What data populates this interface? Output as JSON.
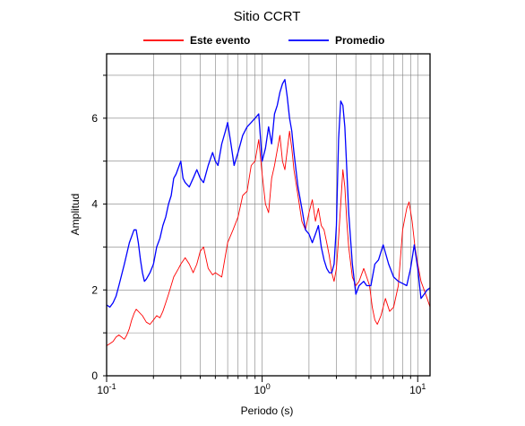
{
  "chart_data": {
    "type": "line",
    "title": "Sitio CCRT",
    "xlabel": "Periodo (s)",
    "ylabel": "Amplitud",
    "x_scale": "log",
    "xlim": [
      0.1,
      12
    ],
    "ylim": [
      0,
      7.5
    ],
    "x_ticks": [
      {
        "value": 0.1,
        "base": "10",
        "exp": "-1"
      },
      {
        "value": 1,
        "base": "10",
        "exp": "0"
      },
      {
        "value": 10,
        "base": "10",
        "exp": "1"
      }
    ],
    "y_ticks": [
      0,
      2,
      4,
      6
    ],
    "grid": true,
    "legend_position": "top-center",
    "series": [
      {
        "name": "Este evento",
        "color": "#ff0000",
        "points": [
          [
            0.1,
            0.7
          ],
          [
            0.105,
            0.75
          ],
          [
            0.11,
            0.8
          ],
          [
            0.115,
            0.9
          ],
          [
            0.12,
            0.95
          ],
          [
            0.125,
            0.9
          ],
          [
            0.13,
            0.85
          ],
          [
            0.135,
            0.95
          ],
          [
            0.14,
            1.1
          ],
          [
            0.145,
            1.3
          ],
          [
            0.15,
            1.45
          ],
          [
            0.155,
            1.55
          ],
          [
            0.16,
            1.5
          ],
          [
            0.17,
            1.4
          ],
          [
            0.18,
            1.25
          ],
          [
            0.19,
            1.2
          ],
          [
            0.2,
            1.3
          ],
          [
            0.21,
            1.4
          ],
          [
            0.22,
            1.35
          ],
          [
            0.23,
            1.5
          ],
          [
            0.24,
            1.7
          ],
          [
            0.25,
            1.9
          ],
          [
            0.27,
            2.3
          ],
          [
            0.29,
            2.5
          ],
          [
            0.3,
            2.6
          ],
          [
            0.32,
            2.75
          ],
          [
            0.34,
            2.6
          ],
          [
            0.36,
            2.4
          ],
          [
            0.38,
            2.6
          ],
          [
            0.4,
            2.9
          ],
          [
            0.42,
            3.0
          ],
          [
            0.45,
            2.5
          ],
          [
            0.48,
            2.35
          ],
          [
            0.5,
            2.4
          ],
          [
            0.55,
            2.3
          ],
          [
            0.58,
            2.8
          ],
          [
            0.6,
            3.1
          ],
          [
            0.65,
            3.4
          ],
          [
            0.7,
            3.7
          ],
          [
            0.75,
            4.2
          ],
          [
            0.8,
            4.3
          ],
          [
            0.85,
            4.9
          ],
          [
            0.9,
            5.0
          ],
          [
            0.95,
            5.5
          ],
          [
            1.0,
            4.7
          ],
          [
            1.05,
            4.0
          ],
          [
            1.1,
            3.8
          ],
          [
            1.15,
            4.6
          ],
          [
            1.2,
            4.9
          ],
          [
            1.3,
            5.6
          ],
          [
            1.35,
            5.0
          ],
          [
            1.4,
            4.8
          ],
          [
            1.5,
            5.7
          ],
          [
            1.55,
            5.3
          ],
          [
            1.6,
            4.8
          ],
          [
            1.7,
            4.2
          ],
          [
            1.8,
            3.6
          ],
          [
            1.9,
            3.4
          ],
          [
            2.0,
            3.8
          ],
          [
            2.1,
            4.1
          ],
          [
            2.2,
            3.6
          ],
          [
            2.3,
            3.9
          ],
          [
            2.4,
            3.5
          ],
          [
            2.5,
            3.4
          ],
          [
            2.6,
            3.1
          ],
          [
            2.7,
            2.8
          ],
          [
            2.8,
            2.4
          ],
          [
            2.9,
            2.2
          ],
          [
            3.0,
            2.5
          ],
          [
            3.1,
            3.2
          ],
          [
            3.2,
            4.0
          ],
          [
            3.3,
            4.8
          ],
          [
            3.4,
            4.4
          ],
          [
            3.5,
            3.6
          ],
          [
            3.6,
            3.0
          ],
          [
            3.8,
            2.3
          ],
          [
            4.0,
            2.1
          ],
          [
            4.2,
            2.2
          ],
          [
            4.5,
            2.5
          ],
          [
            4.7,
            2.3
          ],
          [
            4.9,
            2.1
          ],
          [
            5.1,
            1.6
          ],
          [
            5.3,
            1.3
          ],
          [
            5.5,
            1.2
          ],
          [
            5.8,
            1.4
          ],
          [
            6.2,
            1.8
          ],
          [
            6.6,
            1.5
          ],
          [
            7.0,
            1.6
          ],
          [
            7.5,
            2.1
          ],
          [
            8.0,
            3.4
          ],
          [
            8.5,
            3.9
          ],
          [
            8.8,
            4.05
          ],
          [
            9.2,
            3.6
          ],
          [
            9.6,
            3.0
          ],
          [
            10.0,
            2.6
          ],
          [
            10.5,
            2.2
          ],
          [
            11.0,
            2.0
          ],
          [
            11.5,
            1.8
          ],
          [
            12.0,
            1.6
          ]
        ]
      },
      {
        "name": "Promedio",
        "color": "#0000ff",
        "points": [
          [
            0.1,
            1.65
          ],
          [
            0.105,
            1.6
          ],
          [
            0.11,
            1.7
          ],
          [
            0.115,
            1.85
          ],
          [
            0.12,
            2.1
          ],
          [
            0.13,
            2.6
          ],
          [
            0.14,
            3.1
          ],
          [
            0.15,
            3.4
          ],
          [
            0.155,
            3.4
          ],
          [
            0.16,
            3.1
          ],
          [
            0.165,
            2.7
          ],
          [
            0.17,
            2.4
          ],
          [
            0.175,
            2.2
          ],
          [
            0.18,
            2.25
          ],
          [
            0.19,
            2.4
          ],
          [
            0.2,
            2.6
          ],
          [
            0.21,
            3.0
          ],
          [
            0.22,
            3.2
          ],
          [
            0.23,
            3.5
          ],
          [
            0.24,
            3.7
          ],
          [
            0.25,
            4.0
          ],
          [
            0.26,
            4.2
          ],
          [
            0.27,
            4.6
          ],
          [
            0.28,
            4.7
          ],
          [
            0.3,
            5.0
          ],
          [
            0.31,
            4.6
          ],
          [
            0.32,
            4.5
          ],
          [
            0.34,
            4.4
          ],
          [
            0.36,
            4.6
          ],
          [
            0.38,
            4.8
          ],
          [
            0.4,
            4.6
          ],
          [
            0.42,
            4.5
          ],
          [
            0.45,
            4.9
          ],
          [
            0.48,
            5.2
          ],
          [
            0.5,
            5.0
          ],
          [
            0.52,
            4.9
          ],
          [
            0.55,
            5.4
          ],
          [
            0.58,
            5.7
          ],
          [
            0.6,
            5.9
          ],
          [
            0.63,
            5.4
          ],
          [
            0.66,
            4.9
          ],
          [
            0.7,
            5.2
          ],
          [
            0.75,
            5.6
          ],
          [
            0.8,
            5.8
          ],
          [
            0.85,
            5.9
          ],
          [
            0.9,
            6.0
          ],
          [
            0.95,
            6.1
          ],
          [
            1.0,
            5.0
          ],
          [
            1.05,
            5.3
          ],
          [
            1.1,
            5.8
          ],
          [
            1.15,
            5.4
          ],
          [
            1.2,
            6.1
          ],
          [
            1.25,
            6.3
          ],
          [
            1.3,
            6.6
          ],
          [
            1.35,
            6.8
          ],
          [
            1.4,
            6.9
          ],
          [
            1.45,
            6.5
          ],
          [
            1.5,
            6.0
          ],
          [
            1.55,
            5.7
          ],
          [
            1.6,
            5.2
          ],
          [
            1.7,
            4.4
          ],
          [
            1.8,
            3.9
          ],
          [
            1.9,
            3.4
          ],
          [
            2.0,
            3.3
          ],
          [
            2.1,
            3.1
          ],
          [
            2.2,
            3.3
          ],
          [
            2.3,
            3.5
          ],
          [
            2.4,
            3.0
          ],
          [
            2.5,
            2.7
          ],
          [
            2.6,
            2.5
          ],
          [
            2.7,
            2.4
          ],
          [
            2.8,
            2.4
          ],
          [
            2.9,
            2.6
          ],
          [
            3.0,
            3.5
          ],
          [
            3.1,
            5.5
          ],
          [
            3.2,
            6.4
          ],
          [
            3.3,
            6.3
          ],
          [
            3.4,
            5.8
          ],
          [
            3.5,
            4.8
          ],
          [
            3.6,
            3.8
          ],
          [
            3.8,
            2.6
          ],
          [
            4.0,
            1.9
          ],
          [
            4.2,
            2.1
          ],
          [
            4.5,
            2.2
          ],
          [
            4.7,
            2.1
          ],
          [
            5.0,
            2.1
          ],
          [
            5.3,
            2.6
          ],
          [
            5.6,
            2.7
          ],
          [
            6.0,
            3.05
          ],
          [
            6.5,
            2.6
          ],
          [
            7.0,
            2.3
          ],
          [
            7.5,
            2.2
          ],
          [
            8.0,
            2.15
          ],
          [
            8.5,
            2.1
          ],
          [
            9.0,
            2.5
          ],
          [
            9.5,
            3.05
          ],
          [
            10.0,
            2.5
          ],
          [
            10.5,
            1.8
          ],
          [
            11.0,
            1.9
          ],
          [
            11.5,
            2.0
          ],
          [
            12.0,
            2.05
          ]
        ]
      }
    ]
  }
}
